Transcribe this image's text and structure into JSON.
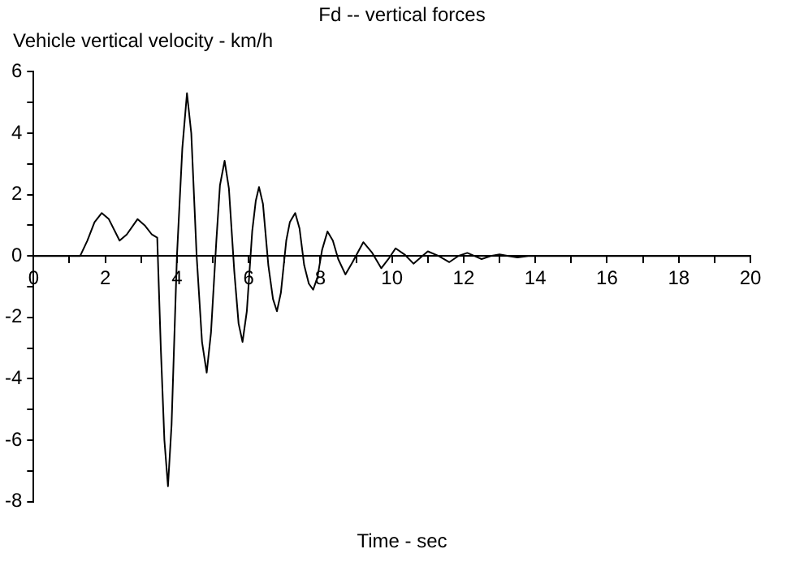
{
  "chart_data": {
    "type": "line",
    "title": "Fd -- vertical forces",
    "ylabel": "Vehicle vertical velocity - km/h",
    "xlabel": "Time - sec",
    "x": [
      0,
      1.0,
      1.3,
      1.5,
      1.7,
      1.9,
      2.1,
      2.4,
      2.6,
      2.9,
      3.1,
      3.3,
      3.45,
      3.55,
      3.65,
      3.75,
      3.85,
      4.0,
      4.15,
      4.28,
      4.4,
      4.55,
      4.7,
      4.83,
      4.95,
      5.1,
      5.2,
      5.33,
      5.45,
      5.6,
      5.72,
      5.83,
      5.95,
      6.1,
      6.2,
      6.29,
      6.4,
      6.55,
      6.68,
      6.79,
      6.9,
      7.05,
      7.15,
      7.3,
      7.42,
      7.55,
      7.68,
      7.8,
      7.92,
      8.05,
      8.2,
      8.35,
      8.5,
      8.7,
      8.9,
      9.2,
      9.45,
      9.7,
      9.9,
      10.1,
      10.35,
      10.6,
      10.8,
      11.0,
      11.3,
      11.6,
      11.85,
      12.1,
      12.3,
      12.5,
      12.75,
      13.0,
      13.25,
      13.5,
      13.8,
      14.1,
      14.5,
      15.0,
      15.5,
      16,
      20
    ],
    "series": [
      {
        "color": "#000000",
        "values": [
          0,
          0,
          0,
          0.5,
          1.1,
          1.4,
          1.2,
          0.5,
          0.7,
          1.2,
          1.0,
          0.7,
          0.6,
          -3.0,
          -6.0,
          -7.5,
          -5.5,
          0,
          3.5,
          5.3,
          4.0,
          0,
          -2.8,
          -3.8,
          -2.5,
          0.5,
          2.3,
          3.1,
          2.2,
          -0.5,
          -2.2,
          -2.8,
          -1.8,
          0.8,
          1.8,
          2.25,
          1.7,
          -0.3,
          -1.4,
          -1.8,
          -1.2,
          0.5,
          1.1,
          1.4,
          0.9,
          -0.3,
          -0.9,
          -1.1,
          -0.7,
          0.2,
          0.8,
          0.5,
          -0.1,
          -0.6,
          -0.2,
          0.45,
          0.1,
          -0.4,
          -0.1,
          0.25,
          0.05,
          -0.25,
          -0.05,
          0.15,
          0,
          -0.2,
          0,
          0.1,
          0,
          -0.1,
          0,
          0.05,
          0,
          -0.05,
          0,
          0,
          0,
          0,
          0,
          0,
          0
        ]
      }
    ],
    "xlim": [
      0,
      20
    ],
    "xticks": [
      0,
      {
        "value": 1,
        "label": null
      },
      2,
      {
        "value": 3,
        "label": null
      },
      4,
      {
        "value": 5,
        "label": null
      },
      6,
      {
        "value": 7,
        "label": null
      },
      8,
      {
        "value": 9,
        "label": null
      },
      10,
      {
        "value": 11,
        "label": null
      },
      12,
      {
        "value": 13,
        "label": null
      },
      14,
      {
        "value": 15,
        "label": null
      },
      16,
      {
        "value": 17,
        "label": null
      },
      18,
      {
        "value": 19,
        "label": null
      },
      20
    ],
    "ylim": [
      -8,
      6
    ],
    "yticks": [
      -8,
      {
        "value": -7,
        "label": null
      },
      -6,
      {
        "value": -5,
        "label": null
      },
      -4,
      {
        "value": -3,
        "label": null
      },
      -2,
      {
        "value": -1,
        "label": null
      },
      0,
      {
        "value": 1,
        "label": null
      },
      2,
      {
        "value": 3,
        "label": null
      },
      4,
      {
        "value": 5,
        "label": null
      },
      6
    ],
    "grid": false,
    "legend": false,
    "marker": "none",
    "line_style": "solid"
  }
}
